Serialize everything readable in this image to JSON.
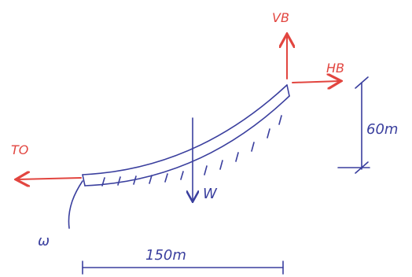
{
  "labels": {
    "vb": "VB",
    "hb": "HB",
    "to": "TO",
    "w_load": "W",
    "w_lower": "ω",
    "height": "60m",
    "span": "150m"
  }
}
